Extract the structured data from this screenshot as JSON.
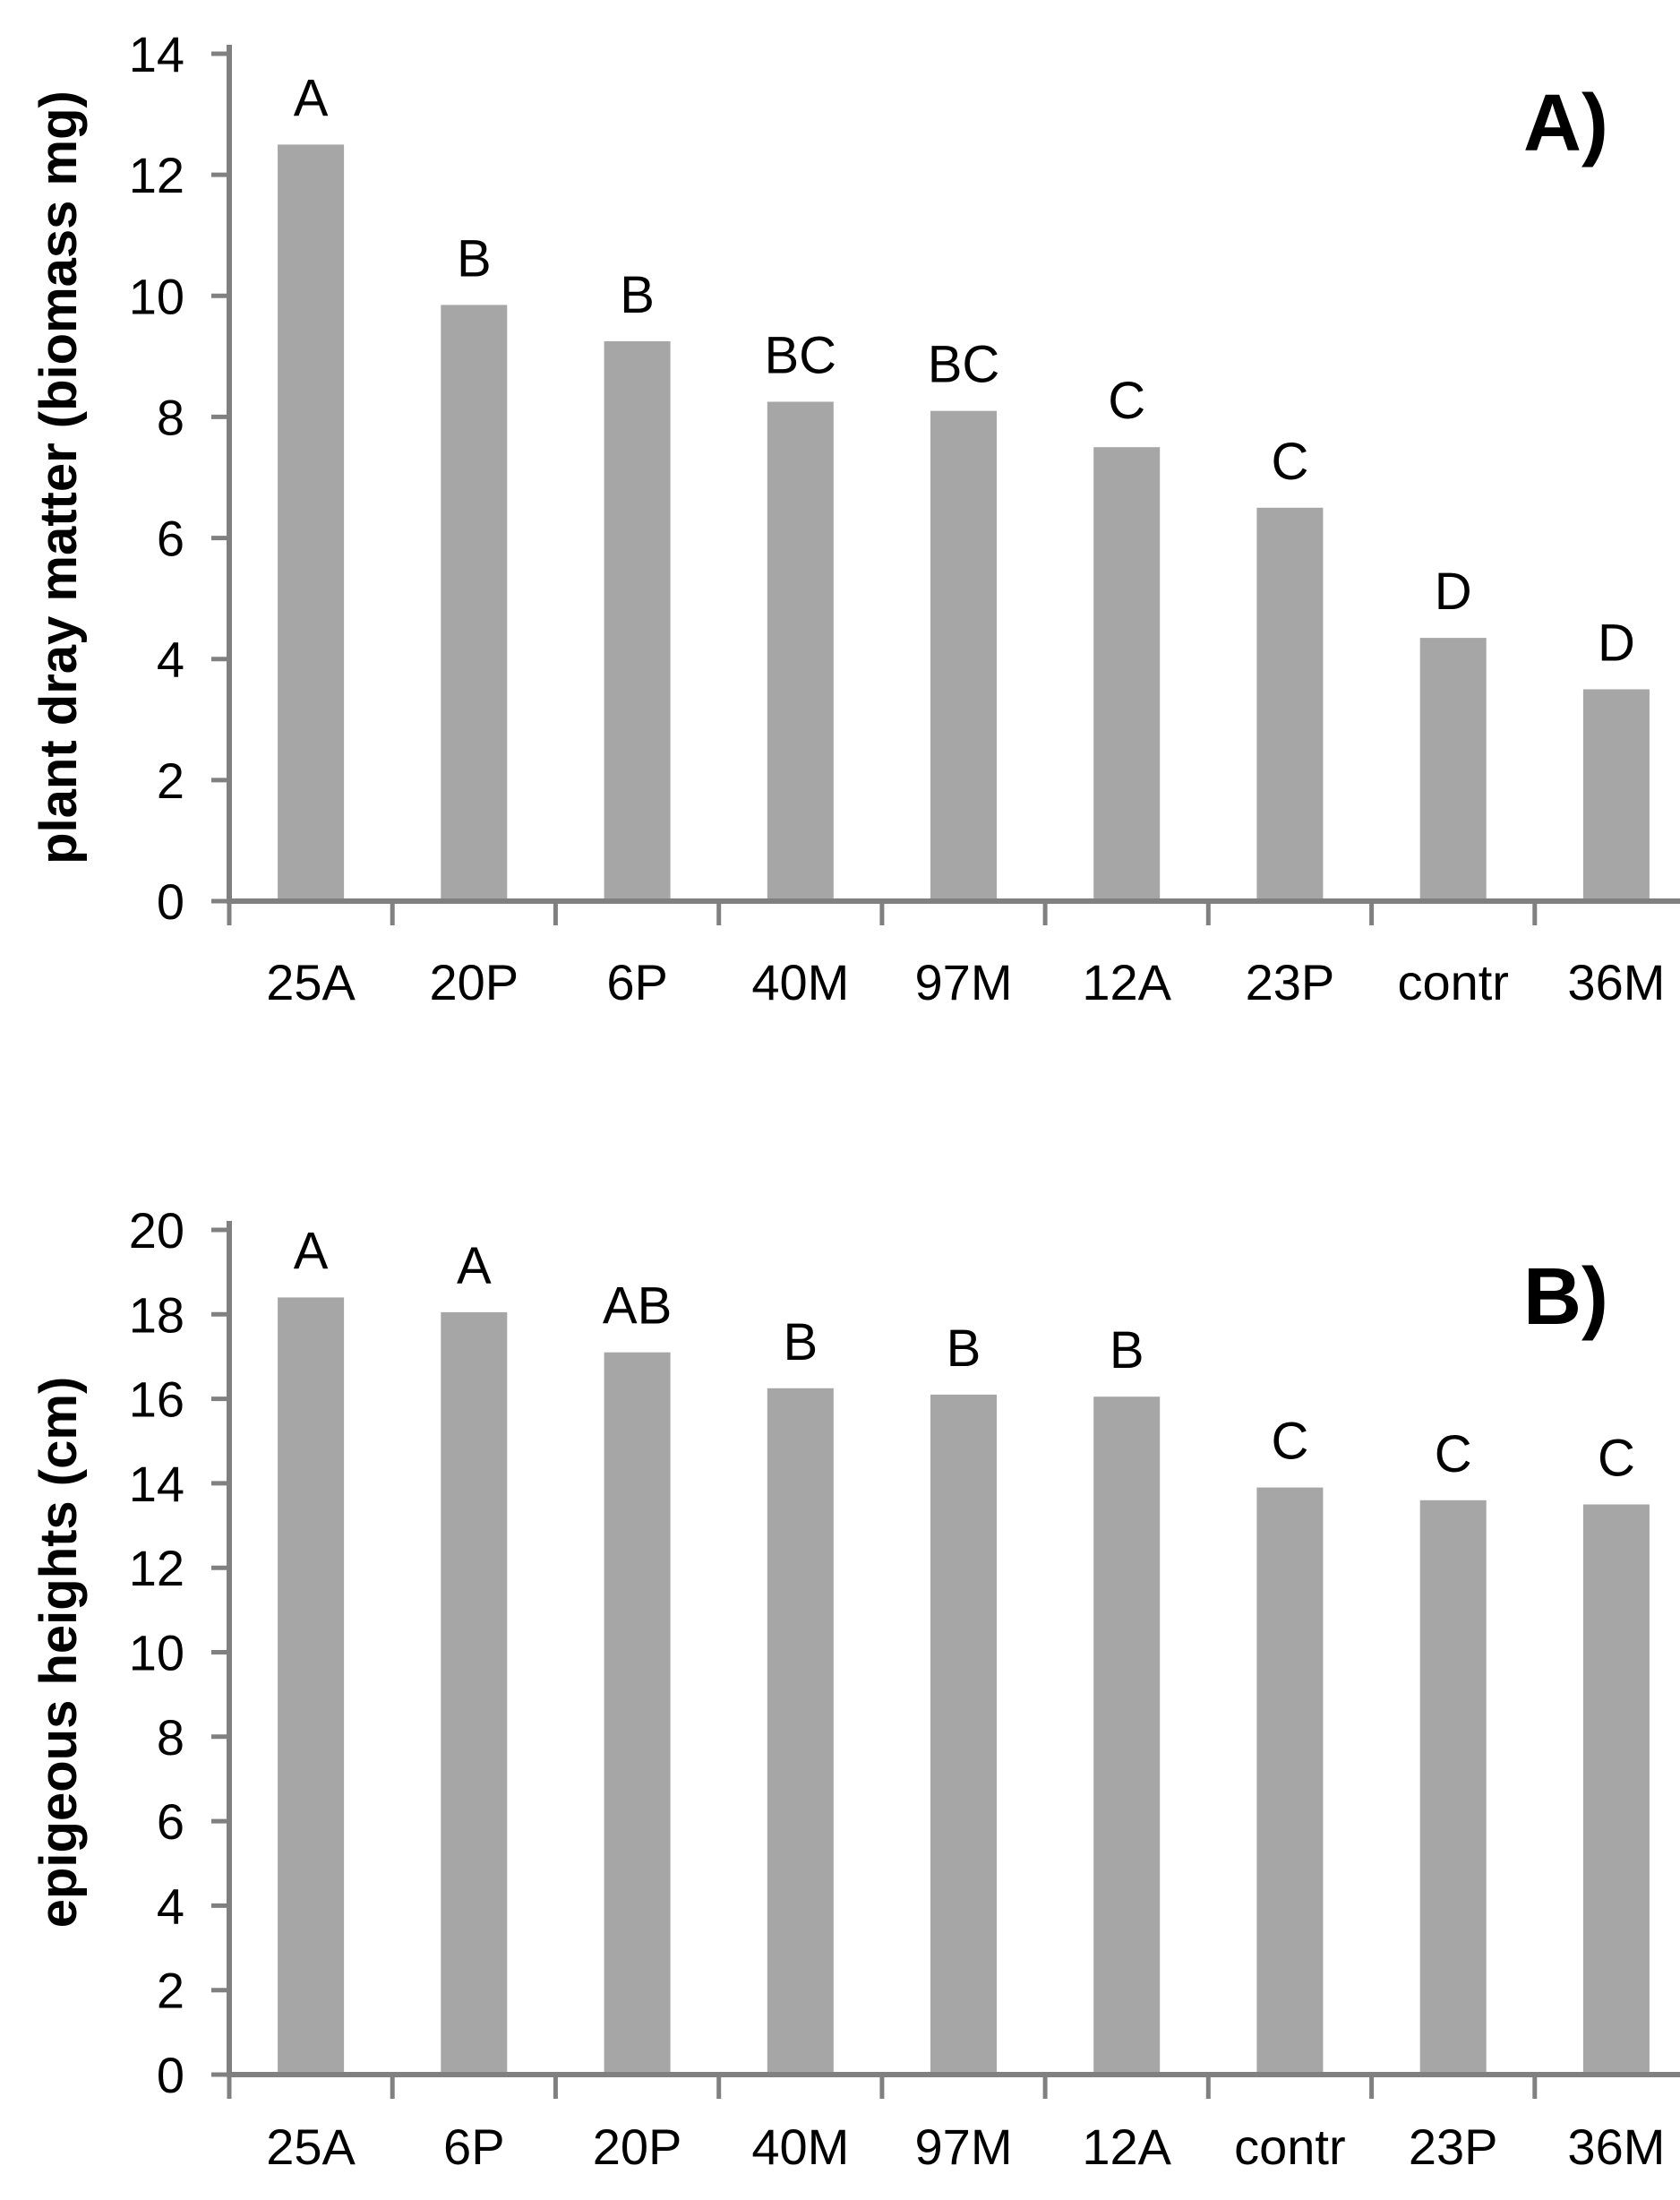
{
  "page": {
    "background_color": "#ffffff",
    "text_color": "#000000"
  },
  "chart_data": [
    {
      "id": "A",
      "type": "bar",
      "panel_label": "A)",
      "title": "",
      "xlabel": "",
      "ylabel": "plant dray matter (biomass mg)",
      "categories": [
        "25A",
        "20P",
        "6P",
        "40M",
        "97M",
        "12A",
        "23P",
        "contr",
        "36M"
      ],
      "values": [
        12.5,
        9.85,
        9.25,
        8.25,
        8.1,
        7.5,
        6.5,
        4.35,
        3.5
      ],
      "significance_letters": [
        "A",
        "B",
        "B",
        "BC",
        "BC",
        "C",
        "C",
        "D",
        "D"
      ],
      "ylim": [
        0,
        14
      ],
      "ytick_step": 2,
      "ytick_labels": [
        "0",
        "2",
        "4",
        "6",
        "8",
        "10",
        "12",
        "14"
      ],
      "bar_color": "#a6a6a6",
      "axis_color": "#808080",
      "grid": false,
      "legend": null
    },
    {
      "id": "B",
      "type": "bar",
      "panel_label": "B)",
      "title": "",
      "xlabel": "",
      "ylabel": "epigeous heights (cm)",
      "categories": [
        "25A",
        "6P",
        "20P",
        "40M",
        "97M",
        "12A",
        "contr",
        "23P",
        "36M"
      ],
      "values": [
        18.4,
        18.05,
        17.1,
        16.25,
        16.1,
        16.05,
        13.9,
        13.6,
        13.5
      ],
      "significance_letters": [
        "A",
        "A",
        "AB",
        "B",
        "B",
        "B",
        "C",
        "C",
        "C"
      ],
      "ylim": [
        0,
        20
      ],
      "ytick_step": 2,
      "ytick_labels": [
        "0",
        "2",
        "4",
        "6",
        "8",
        "10",
        "12",
        "14",
        "16",
        "18",
        "20"
      ],
      "bar_color": "#a6a6a6",
      "axis_color": "#808080",
      "grid": false,
      "legend": null
    }
  ]
}
